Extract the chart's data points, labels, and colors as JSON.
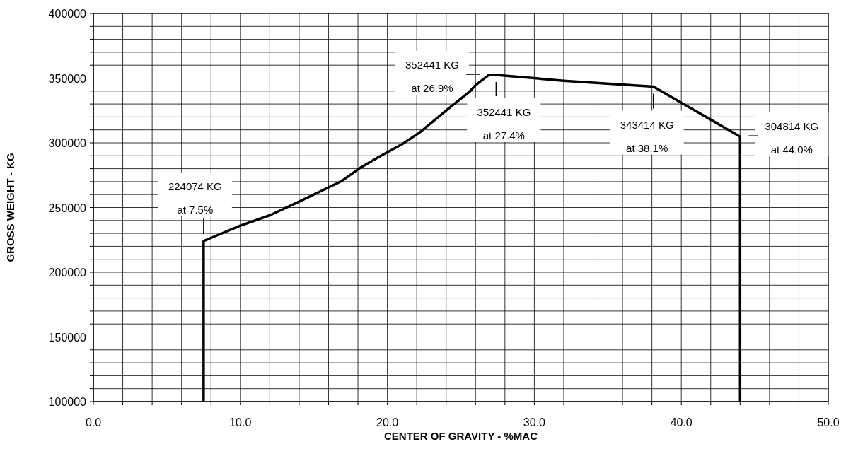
{
  "chart_data": {
    "type": "line",
    "xlabel": "CENTER OF GRAVITY - %MAC",
    "ylabel": "GROSS WEIGHT - KG",
    "series": [
      {
        "color": "#000000",
        "x": [
          7.5,
          7.5,
          8.0,
          10.0,
          12.0,
          14.0,
          16.9,
          18.1,
          19.5,
          21.0,
          22.2,
          24.2,
          25.6,
          26.0,
          26.9,
          27.4,
          32.0,
          38.1,
          44.0,
          44.0
        ],
        "values": [
          100000,
          224074,
          226500,
          236000,
          244000,
          254600,
          270500,
          280300,
          289600,
          298900,
          308000,
          326800,
          339600,
          344600,
          352441,
          352441,
          348000,
          343414,
          304814,
          100000
        ]
      }
    ],
    "xlim": [
      0,
      50
    ],
    "ylim": [
      100000,
      400000
    ],
    "xticks": [
      {
        "value": 0,
        "label": "0.0"
      },
      {
        "value": 2,
        "label": null
      },
      {
        "value": 4,
        "label": null
      },
      {
        "value": 6,
        "label": null
      },
      {
        "value": 8,
        "label": null
      },
      {
        "value": 10,
        "label": "10.0"
      },
      {
        "value": 12,
        "label": null
      },
      {
        "value": 14,
        "label": null
      },
      {
        "value": 16,
        "label": null
      },
      {
        "value": 18,
        "label": null
      },
      {
        "value": 20,
        "label": "20.0"
      },
      {
        "value": 22,
        "label": null
      },
      {
        "value": 24,
        "label": null
      },
      {
        "value": 26,
        "label": null
      },
      {
        "value": 28,
        "label": null
      },
      {
        "value": 30,
        "label": "30.0"
      },
      {
        "value": 32,
        "label": null
      },
      {
        "value": 34,
        "label": null
      },
      {
        "value": 36,
        "label": null
      },
      {
        "value": 38,
        "label": null
      },
      {
        "value": 40,
        "label": "40.0"
      },
      {
        "value": 42,
        "label": null
      },
      {
        "value": 44,
        "label": null
      },
      {
        "value": 46,
        "label": null
      },
      {
        "value": 48,
        "label": null
      },
      {
        "value": 50,
        "label": "50.0"
      }
    ],
    "yticks": [
      100000,
      {
        "value": 110000,
        "label": null
      },
      {
        "value": 120000,
        "label": null
      },
      {
        "value": 130000,
        "label": null
      },
      {
        "value": 140000,
        "label": null
      },
      150000,
      {
        "value": 160000,
        "label": null
      },
      {
        "value": 170000,
        "label": null
      },
      {
        "value": 180000,
        "label": null
      },
      {
        "value": 190000,
        "label": null
      },
      200000,
      {
        "value": 210000,
        "label": null
      },
      {
        "value": 220000,
        "label": null
      },
      {
        "value": 230000,
        "label": null
      },
      {
        "value": 240000,
        "label": null
      },
      250000,
      {
        "value": 260000,
        "label": null
      },
      {
        "value": 270000,
        "label": null
      },
      {
        "value": 280000,
        "label": null
      },
      {
        "value": 290000,
        "label": null
      },
      300000,
      {
        "value": 310000,
        "label": null
      },
      {
        "value": 320000,
        "label": null
      },
      {
        "value": 330000,
        "label": null
      },
      {
        "value": 340000,
        "label": null
      },
      350000,
      {
        "value": 360000,
        "label": null
      },
      {
        "value": 370000,
        "label": null
      },
      {
        "value": 380000,
        "label": null
      },
      {
        "value": 390000,
        "label": null
      },
      400000
    ],
    "grid": true,
    "marker": "none",
    "line_style": "solid",
    "annotations": [
      {
        "text": "224074 KG\nat 7.5%",
        "x": 7.5,
        "y": 224074
      },
      {
        "text": "352441 KG\nat 26.9%",
        "x": 26.9,
        "y": 352441
      },
      {
        "text": "352441 KG\nat 27.4%",
        "x": 27.4,
        "y": 352441
      },
      {
        "text": "343414 KG\nat 38.1%",
        "x": 38.1,
        "y": 343414
      },
      {
        "text": "304814 KG\nat 44.0%",
        "x": 44.0,
        "y": 304814
      }
    ]
  }
}
